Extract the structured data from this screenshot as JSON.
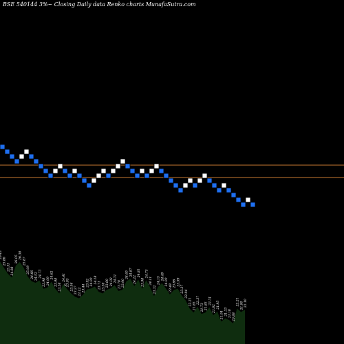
{
  "chart_title": "BSE 540144  3%~ Closing Daily data  Renko  charts MunafaSutra.com",
  "colors": {
    "background": "#000000",
    "up_brick": "#ffffff",
    "down_brick": "#1e6ff0",
    "level_line": "#c87a32",
    "volume_fill": "#0f2d0f",
    "label": "#ffffff"
  },
  "chart_data": {
    "type": "renko",
    "brick_directions": [
      "down",
      "down",
      "down",
      "down",
      "up",
      "up",
      "down",
      "down",
      "down",
      "down",
      "down",
      "up",
      "up",
      "down",
      "down",
      "up",
      "down",
      "down",
      "down",
      "up",
      "up",
      "up",
      "down",
      "up",
      "up",
      "up",
      "down",
      "down",
      "down",
      "up",
      "down",
      "up",
      "up",
      "down",
      "down",
      "down",
      "down",
      "down",
      "up",
      "up",
      "down",
      "up",
      "up",
      "down",
      "down",
      "down",
      "up",
      "down",
      "down",
      "down",
      "down",
      "up",
      "down"
    ],
    "level_lines": [
      24.28,
      23.7
    ],
    "volume_labels": [
      "26.43",
      "25.86",
      "25.33",
      "24.98",
      "26.05",
      "26.38",
      "25.87",
      "25.09",
      "24.66",
      "24.52",
      "24.73",
      "23.98",
      "24.09",
      "24.62",
      "23.98",
      "23.56",
      "24.41",
      "23.95",
      "23.56",
      "23.27",
      "23.12",
      "23.44",
      "23.92",
      "24.00",
      "24.18",
      "23.71",
      "23.56",
      "23.89",
      "24.02",
      "24.31",
      "23.78",
      "23.90",
      "24.65",
      "24.87",
      "24.22",
      "24.81",
      "23.98",
      "24.75",
      "24.11",
      "23.32",
      "24.15",
      "24.49",
      "24.00",
      "23.48",
      "23.86",
      "23.99",
      "23.37",
      "22.94",
      "22.21",
      "21.85",
      "22.37",
      "21.73",
      "21.85",
      "22.31",
      "21.62",
      "21.95",
      "21.04",
      "21.33",
      "21.18",
      "20.88",
      "22.21",
      "21.90",
      "22.10"
    ],
    "volume_marker": "5"
  }
}
